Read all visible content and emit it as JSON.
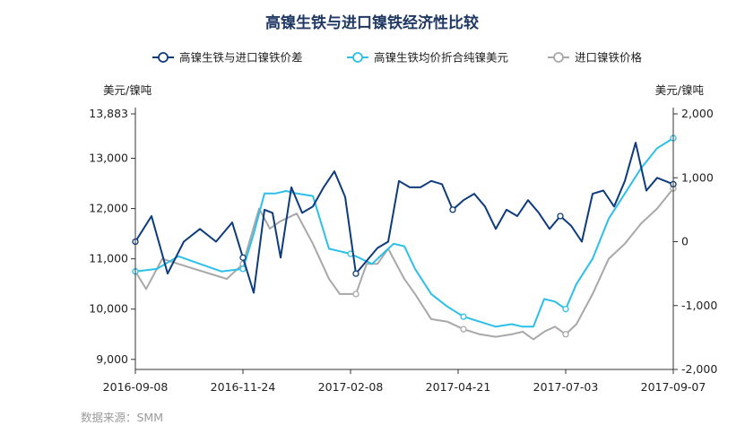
{
  "chart_data": {
    "type": "line",
    "title": "高镍生铁与进口镍铁经济性比较",
    "source": "数据来源：SMM",
    "y_left": {
      "unit": "美元/镍吨",
      "ticks": [
        9000,
        10000,
        11000,
        12000,
        13000,
        13883
      ],
      "tick_labels": [
        "9,000",
        "10,000",
        "11,000",
        "12,000",
        "13,000",
        "13,883"
      ],
      "range": [
        8800,
        13883
      ]
    },
    "y_right": {
      "unit": "美元/镍吨",
      "ticks": [
        -2000,
        -1000,
        0,
        1000,
        2000
      ],
      "tick_labels": [
        "-2,000",
        "-1,000",
        "0",
        "1,000",
        "2,000"
      ],
      "range": [
        -2000,
        2000
      ]
    },
    "x_labels": [
      "2016-09-08",
      "2016-11-24",
      "2017-02-08",
      "2017-04-21",
      "2017-07-03",
      "2017-09-07"
    ],
    "series": [
      {
        "name": "高镍生铁与进口镍铁价差",
        "axis": "right",
        "color": "#0d3b7c",
        "x": [
          0,
          0.03,
          0.06,
          0.09,
          0.12,
          0.15,
          0.18,
          0.2,
          0.22,
          0.24,
          0.255,
          0.27,
          0.29,
          0.31,
          0.33,
          0.35,
          0.37,
          0.39,
          0.41,
          0.43,
          0.45,
          0.47,
          0.49,
          0.51,
          0.53,
          0.55,
          0.57,
          0.59,
          0.61,
          0.63,
          0.65,
          0.67,
          0.69,
          0.71,
          0.73,
          0.75,
          0.77,
          0.79,
          0.81,
          0.83,
          0.85,
          0.87,
          0.89,
          0.91,
          0.93,
          0.95,
          0.97,
          1.0
        ],
        "values": [
          0,
          400,
          -500,
          0,
          200,
          0,
          300,
          -250,
          -800,
          500,
          450,
          -250,
          850,
          450,
          550,
          850,
          1100,
          700,
          -500,
          -300,
          -100,
          0,
          950,
          850,
          850,
          950,
          900,
          500,
          650,
          750,
          550,
          200,
          500,
          400,
          650,
          450,
          200,
          400,
          250,
          0,
          750,
          800,
          550,
          950,
          1550,
          800,
          1000,
          900
        ]
      },
      {
        "name": "高镍生铁均价折合纯镍美元",
        "axis": "left",
        "color": "#2cc0e8",
        "x": [
          0,
          0.04,
          0.08,
          0.12,
          0.16,
          0.2,
          0.22,
          0.24,
          0.26,
          0.28,
          0.3,
          0.33,
          0.36,
          0.38,
          0.4,
          0.42,
          0.44,
          0.46,
          0.48,
          0.5,
          0.52,
          0.55,
          0.58,
          0.61,
          0.64,
          0.67,
          0.7,
          0.72,
          0.74,
          0.76,
          0.78,
          0.8,
          0.82,
          0.85,
          0.88,
          0.91,
          0.94,
          0.97,
          1.0
        ],
        "values": [
          10750,
          10800,
          11050,
          10900,
          10750,
          10800,
          11500,
          12300,
          12300,
          12350,
          12300,
          12250,
          11200,
          11150,
          11100,
          11000,
          10900,
          11100,
          11300,
          11250,
          10800,
          10300,
          10050,
          9850,
          9750,
          9650,
          9700,
          9650,
          9650,
          10200,
          10150,
          10000,
          10500,
          11000,
          11800,
          12300,
          12800,
          13200,
          13400
        ]
      },
      {
        "name": "进口镍铁价格",
        "axis": "left",
        "color": "#a8a8a8",
        "x": [
          0,
          0.02,
          0.05,
          0.08,
          0.11,
          0.14,
          0.17,
          0.2,
          0.23,
          0.25,
          0.27,
          0.3,
          0.33,
          0.36,
          0.38,
          0.41,
          0.43,
          0.45,
          0.47,
          0.5,
          0.52,
          0.55,
          0.58,
          0.61,
          0.64,
          0.67,
          0.7,
          0.72,
          0.74,
          0.76,
          0.78,
          0.8,
          0.82,
          0.85,
          0.88,
          0.91,
          0.94,
          0.97,
          1.0
        ],
        "values": [
          10750,
          10400,
          11000,
          10900,
          10800,
          10700,
          10600,
          10900,
          12000,
          11600,
          11750,
          11900,
          11300,
          10600,
          10300,
          10300,
          10900,
          10900,
          11200,
          10600,
          10300,
          9800,
          9750,
          9600,
          9500,
          9450,
          9500,
          9550,
          9400,
          9550,
          9650,
          9500,
          9700,
          10300,
          11000,
          11300,
          11700,
          12000,
          12400
        ]
      }
    ]
  }
}
